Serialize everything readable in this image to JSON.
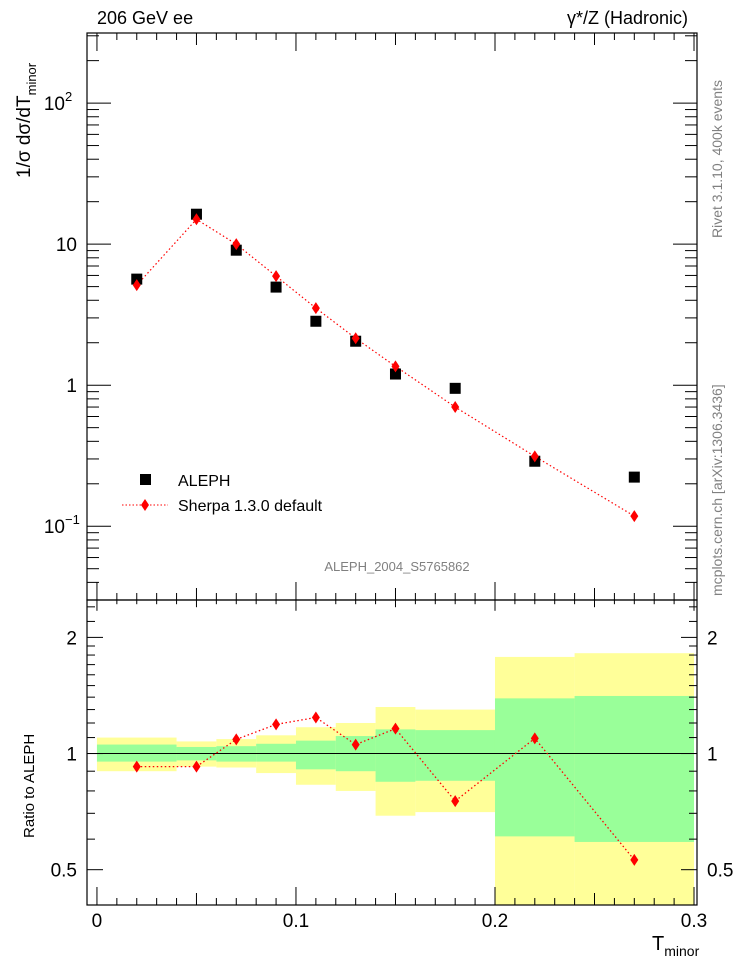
{
  "chart_data": [
    {
      "type": "scatter",
      "title_left": "206 GeV ee",
      "title_right": "γ*/Z (Hadronic)",
      "ylabel": "1/σ  dσ/dT",
      "ylabel_sub": "minor",
      "yscale": "log",
      "ylim": [
        0.03,
        314
      ],
      "y_ticks": [
        {
          "v": 100,
          "label": "10",
          "exp": "2"
        },
        {
          "v": 10,
          "label": "10",
          "exp": ""
        },
        {
          "v": 1,
          "label": "1",
          "exp": ""
        },
        {
          "v": 0.1,
          "label": "10",
          "exp": "−1"
        }
      ],
      "xlim": [
        -0.005,
        0.3015
      ],
      "legend_position": "bottom-left",
      "analysis_label": "ALEPH_2004_S5765862",
      "series": [
        {
          "name": "ALEPH",
          "marker": "square",
          "color": "#000000",
          "x": [
            0.02,
            0.05,
            0.07,
            0.09,
            0.11,
            0.13,
            0.15,
            0.18,
            0.22,
            0.27
          ],
          "y": [
            5.65,
            16.3,
            9.06,
            4.96,
            2.84,
            2.05,
            1.2,
            0.95,
            0.289,
            0.223
          ]
        },
        {
          "name": "Sherpa 1.3.0 default",
          "marker": "diamond",
          "line": "dotted",
          "color": "#ff0000",
          "x": [
            0.02,
            0.05,
            0.07,
            0.09,
            0.11,
            0.13,
            0.15,
            0.18,
            0.22,
            0.27
          ],
          "y": [
            5.12,
            15.0,
            10.0,
            5.93,
            3.52,
            2.15,
            1.36,
            0.7,
            0.313,
            0.118
          ]
        }
      ]
    },
    {
      "type": "scatter",
      "ylabel": "Ratio to ALEPH",
      "xlabel": "T",
      "xlabel_sub": "minor",
      "yscale": "log",
      "ylim": [
        0.405,
        2.5
      ],
      "y_ticks": [
        {
          "v": 2,
          "label": "2"
        },
        {
          "v": 1,
          "label": "1"
        },
        {
          "v": 0.5,
          "label": "0.5"
        }
      ],
      "xlim": [
        -0.005,
        0.3015
      ],
      "x_ticks": [
        {
          "v": 0,
          "label": "0"
        },
        {
          "v": 0.1,
          "label": "0.1"
        },
        {
          "v": 0.2,
          "label": "0.2"
        },
        {
          "v": 0.3,
          "label": "0.3"
        }
      ],
      "bin_edges": [
        0,
        0.04,
        0.06,
        0.08,
        0.1,
        0.12,
        0.14,
        0.16,
        0.2,
        0.24,
        0.3
      ],
      "band_yellow": {
        "color": "#ffff99",
        "upper": [
          1.1,
          1.075,
          1.09,
          1.115,
          1.17,
          1.2,
          1.32,
          1.3,
          1.78,
          1.82
        ],
        "lower": [
          0.9,
          0.925,
          0.92,
          0.89,
          0.83,
          0.8,
          0.69,
          0.705,
          0.3,
          0.3
        ]
      },
      "band_green": {
        "color": "#99ff99",
        "upper": [
          1.055,
          1.04,
          1.045,
          1.06,
          1.08,
          1.11,
          1.155,
          1.15,
          1.39,
          1.41
        ],
        "lower": [
          0.953,
          0.96,
          0.953,
          0.953,
          0.91,
          0.9,
          0.845,
          0.85,
          0.61,
          0.59
        ]
      },
      "series": [
        {
          "name": "Sherpa 1.3.0 default / ALEPH",
          "color": "#ff0000",
          "x": [
            0.02,
            0.05,
            0.07,
            0.09,
            0.11,
            0.13,
            0.15,
            0.18,
            0.22,
            0.27
          ],
          "y": [
            0.925,
            0.925,
            1.088,
            1.19,
            1.24,
            1.055,
            1.16,
            0.753,
            1.095,
            0.53
          ]
        }
      ]
    }
  ],
  "side_text": {
    "rivet": "Rivet 3.1.10,  400k events",
    "mcplots": "mcplots.cern.ch [arXiv:1306.3436]"
  }
}
